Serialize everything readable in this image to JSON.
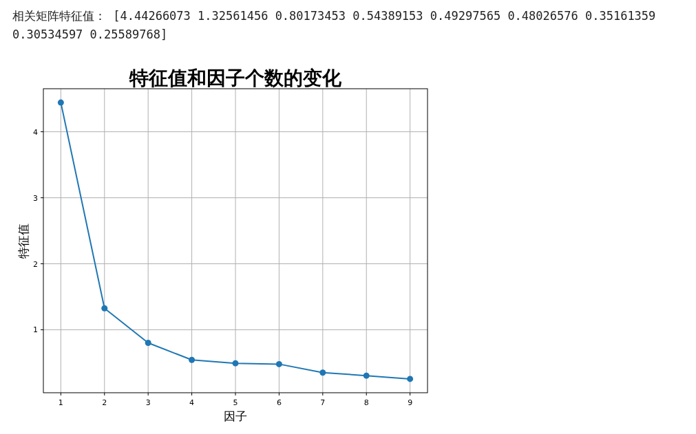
{
  "chart_data": {
    "type": "line",
    "title": "特征值和因子个数的变化",
    "xlabel": "因子",
    "ylabel": "特征值",
    "annotations": [
      "相关矩阵特征值： [4.44266073 1.32561456 0.80173453 0.54389153 0.49297565 0.48026576 0.35161359 0.30534597 0.25589768]"
    ],
    "x": [
      1,
      2,
      3,
      4,
      5,
      6,
      7,
      8,
      9
    ],
    "values": [
      4.44266073,
      1.32561456,
      0.80173453,
      0.54389153,
      0.49297565,
      0.48026576,
      0.35161359,
      0.30534597,
      0.25589768
    ],
    "color": "#1f77b4",
    "marker": "circle",
    "line_style": "solid",
    "grid": true,
    "xlim": [
      0.6,
      9.4
    ],
    "ylim": [
      0.0466,
      4.652
    ],
    "xticks": [
      1,
      2,
      3,
      4,
      5,
      6,
      7,
      8,
      9
    ],
    "yticks": [
      1,
      2,
      3,
      4
    ]
  }
}
